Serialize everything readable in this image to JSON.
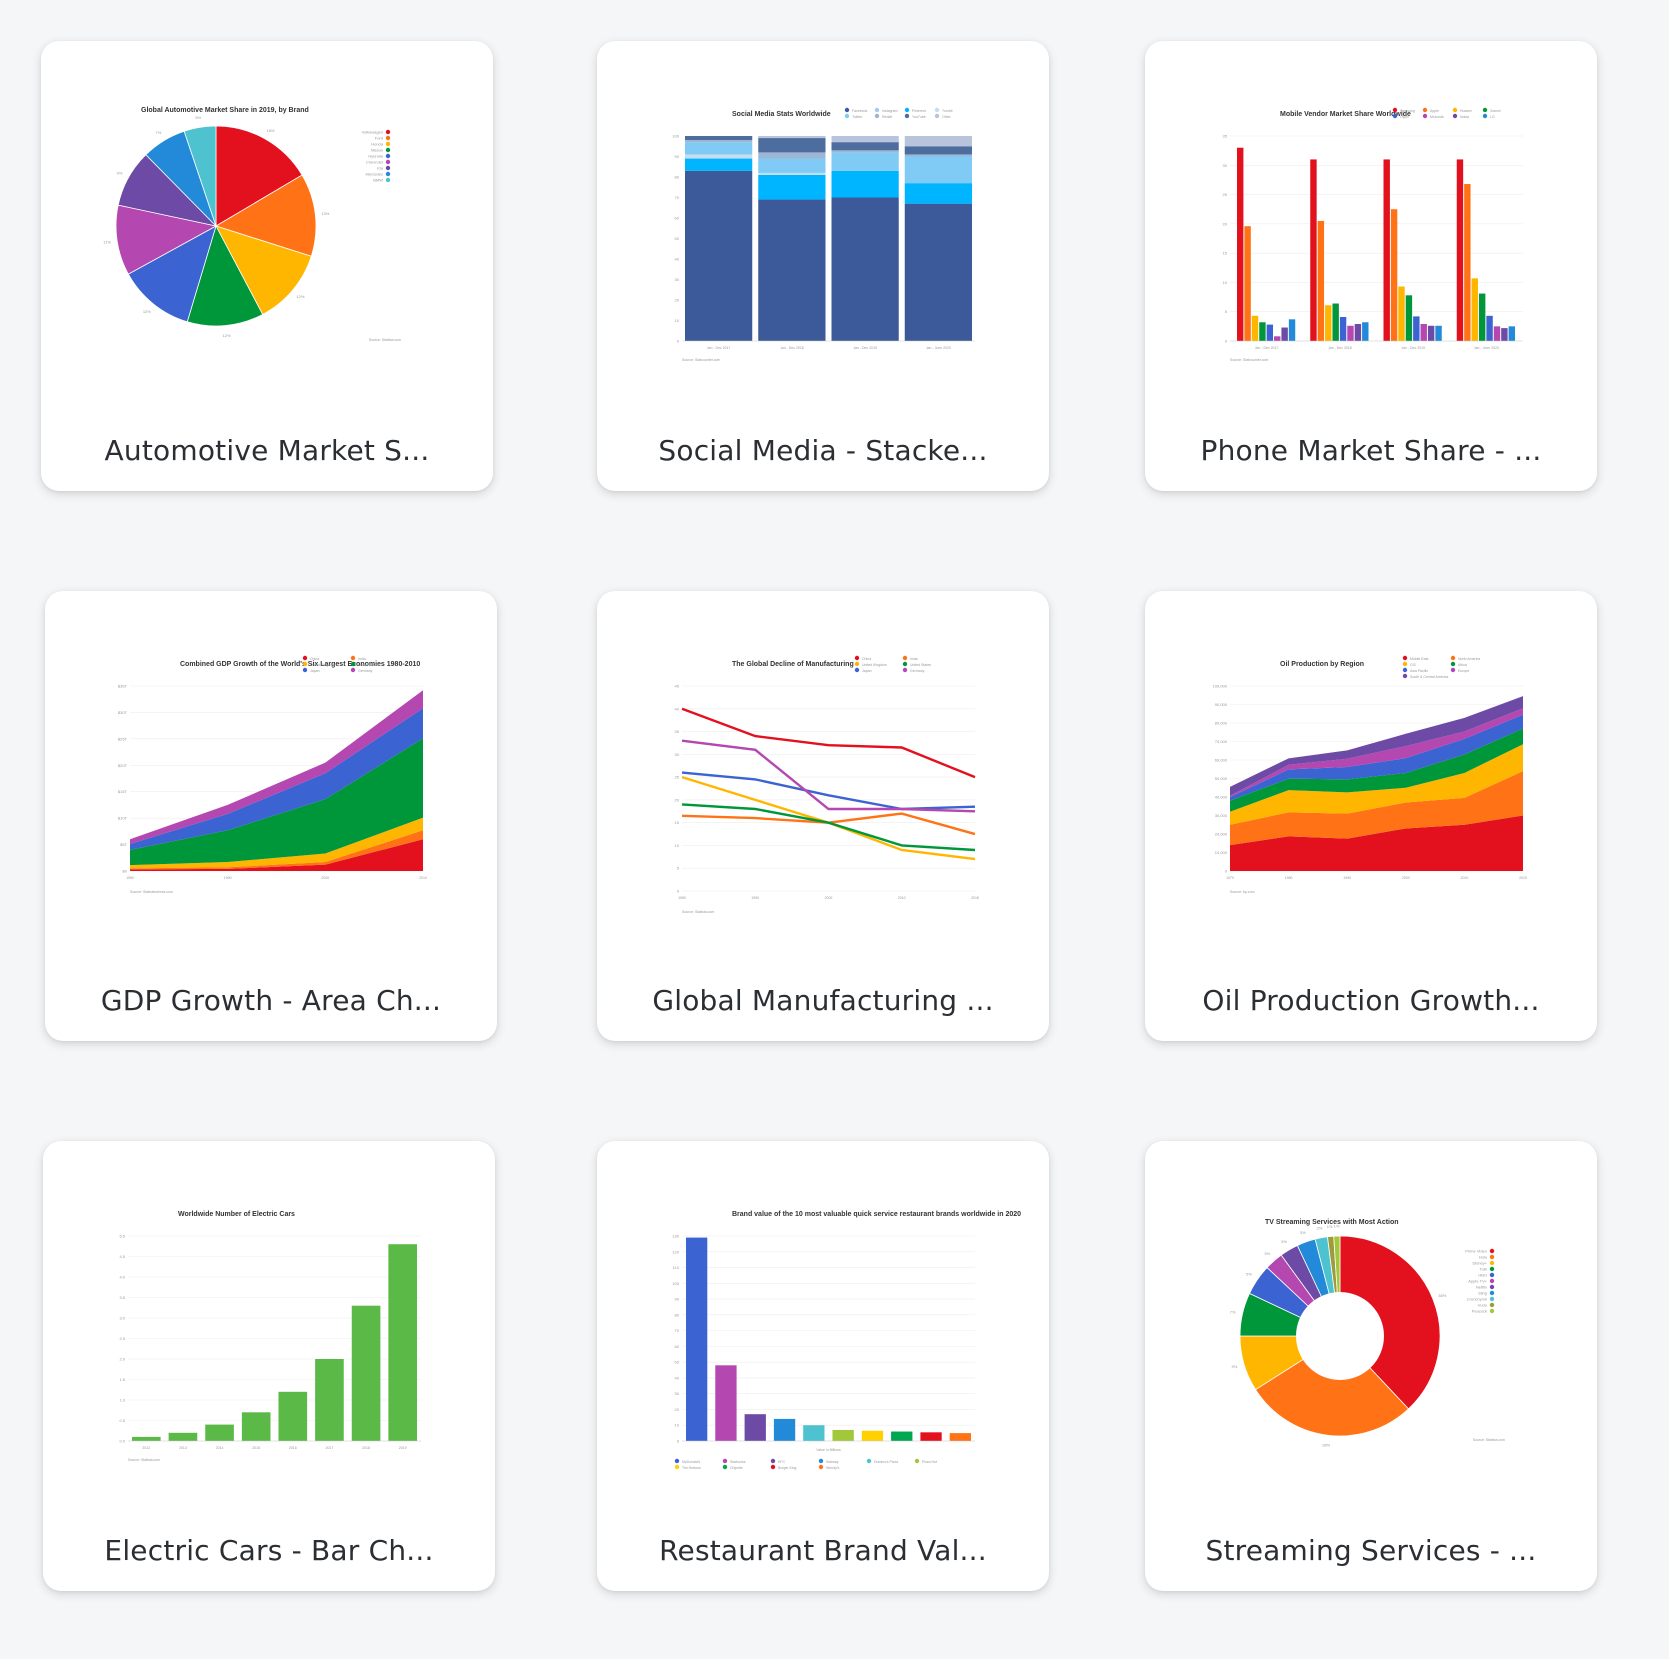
{
  "cards": [
    {
      "label": "Automotive Market S...",
      "chart_data": {
        "type": "pie",
        "title": "Global Automotive Market Share in 2019, by Brand",
        "labels": [
          "Volkswagen",
          "Ford",
          "Honda",
          "Nissan",
          "Hyundai",
          "Chevrolet",
          "Kia",
          "Mercedes",
          "BMW"
        ],
        "values": [
          16,
          13,
          12,
          12,
          12,
          11,
          9,
          7,
          5
        ],
        "colors": [
          "#e3101e",
          "#ff7316",
          "#ffb600",
          "#00973b",
          "#3c63d2",
          "#b447b0",
          "#6d4aa5",
          "#228ad9",
          "#4fc2cf"
        ],
        "slice_labels": [
          "16%",
          "13%",
          "12%",
          "12%",
          "12%",
          "11%",
          "9%",
          "7%",
          "5%"
        ],
        "source": "Source: Statista.com"
      }
    },
    {
      "label": "Social Media - Stacke...",
      "chart_data": {
        "type": "bar",
        "stacked": true,
        "title": "Social Media Stats Worldwide",
        "categories": [
          "Jan - Dec 2017",
          "Jan - Dec 2018",
          "Jan - Dec 2019",
          "Jan - June 2020"
        ],
        "series": [
          {
            "name": "Facebook",
            "values": [
              83,
              69,
              70,
              67
            ],
            "color": "#3c5a9a"
          },
          {
            "name": "Instagram",
            "values": [
              0,
              0,
              0,
              0
            ],
            "color": "#a8c8ec"
          },
          {
            "name": "Pinterest",
            "values": [
              6,
              12,
              13,
              10
            ],
            "color": "#00b5ff"
          },
          {
            "name": "Tumblr",
            "values": [
              2,
              1,
              0,
              0
            ],
            "color": "#c6dcf0"
          },
          {
            "name": "Twitter",
            "values": [
              6,
              7,
              9,
              13
            ],
            "color": "#7fcbf5"
          },
          {
            "name": "Reddit",
            "values": [
              1,
              3,
              1,
              1
            ],
            "color": "#9cb7d4"
          },
          {
            "name": "YouTube",
            "values": [
              2,
              7,
              4,
              4
            ],
            "color": "#4d6d9f"
          },
          {
            "name": "Other",
            "values": [
              0,
              1,
              3,
              5
            ],
            "color": "#b7c4dc"
          }
        ],
        "ylim": [
          0,
          100
        ],
        "yticks": [
          "0",
          "10",
          "20",
          "30",
          "40",
          "50",
          "60",
          "70",
          "80",
          "90",
          "100"
        ],
        "source": "Source: Statcounter.com"
      }
    },
    {
      "label": "Phone Market Share - ...",
      "chart_data": {
        "type": "bar",
        "title": "Mobile Vendor Market Share Worldwide",
        "categories": [
          "Jan - Dec 2017",
          "Jan - Dec 2018",
          "Jan - Dec 2019",
          "Jan - June 2020"
        ],
        "series": [
          {
            "name": "Samsung",
            "values": [
              33,
              31,
              31,
              31
            ],
            "color": "#e3101e"
          },
          {
            "name": "Apple",
            "values": [
              19.6,
              20.5,
              22.5,
              26.8
            ],
            "color": "#ff7316"
          },
          {
            "name": "Huawei",
            "values": [
              4.3,
              6.1,
              9.3,
              10.7
            ],
            "color": "#ffb600"
          },
          {
            "name": "Xiaomi",
            "values": [
              3.2,
              6.4,
              7.8,
              8.1
            ],
            "color": "#00973b"
          },
          {
            "name": "Oppo",
            "values": [
              2.8,
              4.1,
              4.2,
              4.3
            ],
            "color": "#3c63d2"
          },
          {
            "name": "Motorola",
            "values": [
              0.8,
              2.6,
              2.9,
              2.5
            ],
            "color": "#b447b0"
          },
          {
            "name": "Nokia",
            "values": [
              2.3,
              2.9,
              2.6,
              2.2
            ],
            "color": "#6d4aa5"
          },
          {
            "name": "LG",
            "values": [
              3.7,
              3.2,
              2.6,
              2.5
            ],
            "color": "#228ad9"
          }
        ],
        "ylim": [
          0,
          35
        ],
        "yticks": [
          "0",
          "5",
          "10",
          "15",
          "20",
          "25",
          "30",
          "35"
        ],
        "source": "Source: Statcounter.com"
      }
    },
    {
      "label": "GDP Growth - Area Ch...",
      "chart_data": {
        "type": "area",
        "stacked": true,
        "title": "Combined GDP Growth of the World's Six Largest Economies 1980-2010",
        "x": [
          "1980",
          "1990",
          "2000",
          "2010"
        ],
        "series": [
          {
            "name": "China",
            "values": [
              0.3,
              0.4,
              1.2,
              6.0
            ],
            "color": "#e3101e"
          },
          {
            "name": "India",
            "values": [
              0.2,
              0.3,
              0.5,
              1.7
            ],
            "color": "#ff7316"
          },
          {
            "name": "United Kingdom",
            "values": [
              0.6,
              1.0,
              1.6,
              2.4
            ],
            "color": "#ffb600"
          },
          {
            "name": "United States",
            "values": [
              2.9,
              6.0,
              10.3,
              15.0
            ],
            "color": "#00973b"
          },
          {
            "name": "Japan",
            "values": [
              1.1,
              3.1,
              4.9,
              5.7
            ],
            "color": "#3c63d2"
          },
          {
            "name": "Germany",
            "values": [
              0.9,
              1.7,
              2.0,
              3.4
            ],
            "color": "#b447b0"
          }
        ],
        "ylim": [
          0,
          35
        ],
        "yticks": [
          "$0",
          "$5T",
          "$10T",
          "$15T",
          "$20T",
          "$25T",
          "$30T",
          "$35T"
        ],
        "source": "Source: Statisticstimes.com"
      }
    },
    {
      "label": "Global Manufacturing ...",
      "chart_data": {
        "type": "line",
        "title": "The Global Decline of Manufacturing",
        "x": [
          "1980",
          "1990",
          "2000",
          "2010",
          "2018"
        ],
        "series": [
          {
            "name": "China",
            "values": [
              40,
              34,
              32,
              31.5,
              25
            ],
            "color": "#e3101e"
          },
          {
            "name": "India",
            "values": [
              16.5,
              16,
              15,
              17,
              12.5
            ],
            "color": "#ff7316"
          },
          {
            "name": "United Kingdom",
            "values": [
              25,
              20,
              15,
              9,
              7
            ],
            "color": "#ffb600"
          },
          {
            "name": "United States",
            "values": [
              19,
              18,
              15,
              10,
              9
            ],
            "color": "#00973b"
          },
          {
            "name": "Japan",
            "values": [
              26,
              24.5,
              21,
              18,
              18.5
            ],
            "color": "#3c63d2"
          },
          {
            "name": "Germany",
            "values": [
              33,
              31,
              18,
              18,
              17.5
            ],
            "color": "#b447b0"
          }
        ],
        "ylim": [
          0,
          45
        ],
        "yticks": [
          "0",
          "5",
          "10",
          "15",
          "20",
          "25",
          "30",
          "35",
          "40",
          "45"
        ],
        "source": "Source: Statista.com"
      }
    },
    {
      "label": "Oil Production Growth...",
      "chart_data": {
        "type": "area",
        "stacked": true,
        "title": "Oil Production by Region",
        "x": [
          "1970",
          "1980",
          "1990",
          "2000",
          "2010",
          "2019"
        ],
        "series": [
          {
            "name": "Middle East",
            "values": [
              14000,
              18700,
              17500,
              23000,
              25000,
              30000
            ],
            "color": "#e3101e"
          },
          {
            "name": "North America",
            "values": [
              11000,
              13000,
              13500,
              14000,
              14500,
              24000
            ],
            "color": "#ff7316"
          },
          {
            "name": "CIS",
            "values": [
              7000,
              12000,
              11500,
              8000,
              13500,
              14500
            ],
            "color": "#ffb600"
          },
          {
            "name": "Africa",
            "values": [
              6000,
              6200,
              7000,
              8000,
              10000,
              8500
            ],
            "color": "#00973b"
          },
          {
            "name": "Asia Pacific",
            "values": [
              2000,
              5000,
              6700,
              8000,
              8400,
              7500
            ],
            "color": "#3c63d2"
          },
          {
            "name": "Europe",
            "values": [
              700,
              2500,
              4500,
              6500,
              4000,
              3500
            ],
            "color": "#b447b0"
          },
          {
            "name": "South & Central America",
            "values": [
              4800,
              3500,
              4500,
              6700,
              7400,
              6500
            ],
            "color": "#6d4aa5"
          }
        ],
        "ylim": [
          0,
          100000
        ],
        "yticks": [
          "0",
          "10,000",
          "20,000",
          "30,000",
          "40,000",
          "50,000",
          "60,000",
          "70,000",
          "80,000",
          "90,000",
          "100,000"
        ],
        "source": "Source: bp.com"
      }
    },
    {
      "label": "Electric Cars - Bar Ch...",
      "chart_data": {
        "type": "bar",
        "title": "Worldwide Number of Electric Cars",
        "categories": [
          "2012",
          "2013",
          "2014",
          "2015",
          "2016",
          "2017",
          "2018",
          "2019"
        ],
        "values": [
          0.1,
          0.2,
          0.4,
          0.7,
          1.2,
          2.0,
          3.3,
          4.8
        ],
        "color": "#5bba47",
        "ylim": [
          0,
          5
        ],
        "yticks": [
          "0.0",
          "0.5",
          "1.0",
          "1.5",
          "2.0",
          "2.5",
          "3.0",
          "3.5",
          "4.0",
          "4.5",
          "5.0"
        ],
        "source": "Source: Statista.com"
      }
    },
    {
      "label": "Restaurant Brand Val...",
      "chart_data": {
        "type": "bar",
        "title": "Brand value of the 10 most valuable quick service restaurant brands worldwide in 2020",
        "categories": [
          "McDonald's",
          "Starbucks",
          "KFC",
          "Subway",
          "Domino's Pizza",
          "Pizza Hut",
          "Tim Hortons",
          "Chipotle",
          "Burger King",
          "Wendy's"
        ],
        "values": [
          129,
          48,
          17,
          14,
          10,
          7,
          6.5,
          6,
          5.5,
          5
        ],
        "colors": [
          "#3c63d2",
          "#b447b0",
          "#6d4aa5",
          "#228ad9",
          "#4fc2cf",
          "#a1c73b",
          "#ffd100",
          "#00a650",
          "#e3101e",
          "#ff7316"
        ],
        "ylim": [
          0,
          130
        ],
        "xlabel": "Value in Billions",
        "yticks": [
          "0",
          "10",
          "20",
          "30",
          "40",
          "50",
          "60",
          "70",
          "80",
          "90",
          "100",
          "110",
          "120",
          "130"
        ]
      }
    },
    {
      "label": "Streaming Services - ...",
      "chart_data": {
        "type": "pie",
        "donut": true,
        "title": "TV Streaming Services with Most Action",
        "labels": [
          "Prime Video",
          "Hulu",
          "Disney+",
          "Tubi",
          "HBO",
          "Apple TV+",
          "Netflix",
          "Sling",
          "Crunchyroll",
          "Vudu",
          "Peacock"
        ],
        "values": [
          38,
          28,
          9,
          7,
          5,
          3,
          3,
          3,
          2,
          1,
          1
        ],
        "colors": [
          "#e3101e",
          "#ff7316",
          "#ffb600",
          "#00973b",
          "#3c63d2",
          "#b447b0",
          "#6d4aa5",
          "#228ad9",
          "#4fc2cf",
          "#9c9c3c",
          "#a1c73b"
        ],
        "slice_labels": [
          "38%",
          "28%",
          "9%",
          "7%",
          "5%",
          "3%",
          "3%",
          "3%",
          "2%",
          "1%",
          "1%"
        ],
        "source": "Source: Statista.com"
      }
    }
  ]
}
